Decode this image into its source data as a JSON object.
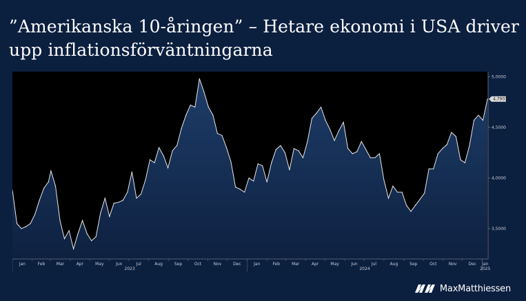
{
  "header": {
    "title": "”Amerikanska 10-åringen” – Hetare ekonomi i USA driver upp inflationsförväntningarna"
  },
  "brand": {
    "name": "MaxMatthiessen",
    "logo_icon": "double-chevron-logo-icon"
  },
  "colors": {
    "background": "#0b1f3f",
    "plot_background": "#000000",
    "line": "#e8e8e8",
    "area_fill_top": "#1f3d6b",
    "area_fill_bottom": "#0f2244",
    "last_value_box": "#d9d9d9"
  },
  "chart_data": {
    "type": "area",
    "title": "",
    "xlabel": "",
    "ylabel": "",
    "ylim": [
      3.2,
      5.05
    ],
    "yticks": [
      "5,0000",
      "4,5000",
      "4,0000",
      "3,5000"
    ],
    "ytick_values": [
      5.0,
      4.5,
      4.0,
      3.5
    ],
    "last_value_label": "4,7903",
    "grid": false,
    "month_ticks": [
      "Jan",
      "Feb",
      "Mar",
      "Apr",
      "May",
      "Jun",
      "Jul",
      "Aug",
      "Sep",
      "Oct",
      "Nov",
      "Dec",
      "Jan",
      "Feb",
      "Mar",
      "Apr",
      "May",
      "Jun",
      "Jul",
      "Aug",
      "Sep",
      "Oct",
      "Nov",
      "Dec",
      "Jan"
    ],
    "year_labels": [
      "2023",
      "2024",
      "2025"
    ],
    "x_start": "2023-01-01",
    "x_end": "2025-01-10",
    "series": [
      {
        "name": "",
        "points": [
          [
            "2023-01-01",
            3.88
          ],
          [
            "2023-01-08",
            3.55
          ],
          [
            "2023-01-15",
            3.5
          ],
          [
            "2023-01-22",
            3.52
          ],
          [
            "2023-01-29",
            3.55
          ],
          [
            "2023-02-05",
            3.64
          ],
          [
            "2023-02-12",
            3.78
          ],
          [
            "2023-02-19",
            3.9
          ],
          [
            "2023-02-26",
            3.96
          ],
          [
            "2023-03-02",
            4.07
          ],
          [
            "2023-03-09",
            3.92
          ],
          [
            "2023-03-16",
            3.58
          ],
          [
            "2023-03-23",
            3.4
          ],
          [
            "2023-03-30",
            3.48
          ],
          [
            "2023-04-06",
            3.3
          ],
          [
            "2023-04-13",
            3.45
          ],
          [
            "2023-04-20",
            3.58
          ],
          [
            "2023-04-27",
            3.45
          ],
          [
            "2023-05-04",
            3.38
          ],
          [
            "2023-05-11",
            3.42
          ],
          [
            "2023-05-18",
            3.65
          ],
          [
            "2023-05-25",
            3.8
          ],
          [
            "2023-06-01",
            3.62
          ],
          [
            "2023-06-08",
            3.75
          ],
          [
            "2023-06-15",
            3.76
          ],
          [
            "2023-06-22",
            3.78
          ],
          [
            "2023-06-29",
            3.86
          ],
          [
            "2023-07-06",
            4.06
          ],
          [
            "2023-07-13",
            3.8
          ],
          [
            "2023-07-20",
            3.84
          ],
          [
            "2023-07-27",
            3.98
          ],
          [
            "2023-08-03",
            4.18
          ],
          [
            "2023-08-10",
            4.15
          ],
          [
            "2023-08-17",
            4.3
          ],
          [
            "2023-08-24",
            4.22
          ],
          [
            "2023-08-31",
            4.1
          ],
          [
            "2023-09-07",
            4.27
          ],
          [
            "2023-09-14",
            4.32
          ],
          [
            "2023-09-21",
            4.49
          ],
          [
            "2023-09-28",
            4.62
          ],
          [
            "2023-10-05",
            4.72
          ],
          [
            "2023-10-12",
            4.7
          ],
          [
            "2023-10-19",
            4.98
          ],
          [
            "2023-10-26",
            4.85
          ],
          [
            "2023-11-02",
            4.7
          ],
          [
            "2023-11-09",
            4.62
          ],
          [
            "2023-11-16",
            4.44
          ],
          [
            "2023-11-23",
            4.42
          ],
          [
            "2023-11-30",
            4.3
          ],
          [
            "2023-12-07",
            4.16
          ],
          [
            "2023-12-14",
            3.91
          ],
          [
            "2023-12-21",
            3.89
          ],
          [
            "2023-12-28",
            3.86
          ],
          [
            "2024-01-04",
            4.0
          ],
          [
            "2024-01-11",
            3.97
          ],
          [
            "2024-01-18",
            4.14
          ],
          [
            "2024-01-25",
            4.12
          ],
          [
            "2024-02-01",
            3.96
          ],
          [
            "2024-02-08",
            4.15
          ],
          [
            "2024-02-15",
            4.28
          ],
          [
            "2024-02-22",
            4.32
          ],
          [
            "2024-02-29",
            4.25
          ],
          [
            "2024-03-07",
            4.08
          ],
          [
            "2024-03-14",
            4.29
          ],
          [
            "2024-03-21",
            4.27
          ],
          [
            "2024-03-28",
            4.2
          ],
          [
            "2024-04-04",
            4.36
          ],
          [
            "2024-04-11",
            4.59
          ],
          [
            "2024-04-18",
            4.64
          ],
          [
            "2024-04-25",
            4.7
          ],
          [
            "2024-05-02",
            4.57
          ],
          [
            "2024-05-09",
            4.48
          ],
          [
            "2024-05-16",
            4.37
          ],
          [
            "2024-05-23",
            4.47
          ],
          [
            "2024-05-30",
            4.55
          ],
          [
            "2024-06-06",
            4.29
          ],
          [
            "2024-06-13",
            4.24
          ],
          [
            "2024-06-20",
            4.26
          ],
          [
            "2024-06-27",
            4.36
          ],
          [
            "2024-07-04",
            4.28
          ],
          [
            "2024-07-11",
            4.2
          ],
          [
            "2024-07-18",
            4.2
          ],
          [
            "2024-07-25",
            4.24
          ],
          [
            "2024-08-01",
            3.98
          ],
          [
            "2024-08-08",
            3.8
          ],
          [
            "2024-08-15",
            3.92
          ],
          [
            "2024-08-22",
            3.86
          ],
          [
            "2024-08-29",
            3.86
          ],
          [
            "2024-09-05",
            3.73
          ],
          [
            "2024-09-12",
            3.67
          ],
          [
            "2024-09-19",
            3.73
          ],
          [
            "2024-09-26",
            3.79
          ],
          [
            "2024-10-03",
            3.85
          ],
          [
            "2024-10-10",
            4.09
          ],
          [
            "2024-10-17",
            4.09
          ],
          [
            "2024-10-24",
            4.24
          ],
          [
            "2024-10-31",
            4.29
          ],
          [
            "2024-11-07",
            4.33
          ],
          [
            "2024-11-14",
            4.45
          ],
          [
            "2024-11-21",
            4.41
          ],
          [
            "2024-11-28",
            4.18
          ],
          [
            "2024-12-05",
            4.15
          ],
          [
            "2024-12-12",
            4.32
          ],
          [
            "2024-12-19",
            4.57
          ],
          [
            "2024-12-26",
            4.62
          ],
          [
            "2025-01-02",
            4.57
          ],
          [
            "2025-01-09",
            4.78
          ]
        ]
      }
    ]
  }
}
